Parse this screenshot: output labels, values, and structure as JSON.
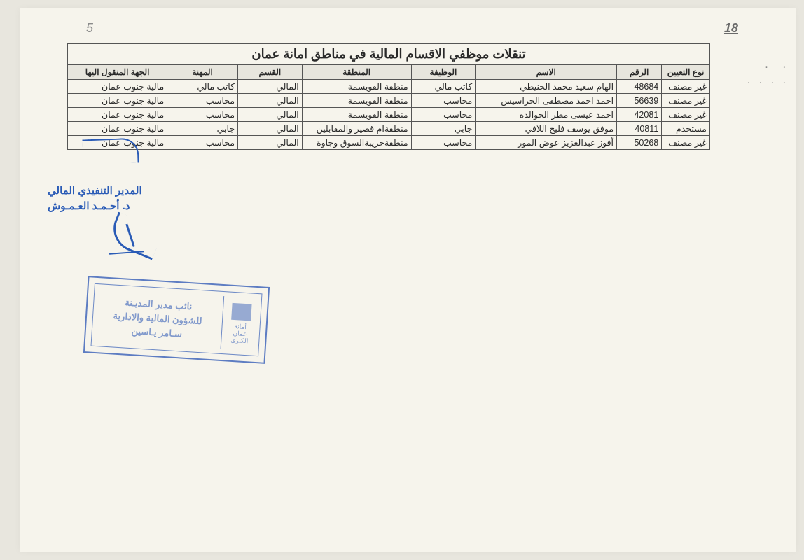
{
  "page_number_right": "18",
  "page_number_left": "5",
  "title": "تنقلات موظفي الاقسام المالية في مناطق امانة عمان",
  "table": {
    "columns": [
      "نوع التعيين",
      "الرقم",
      "الاسم",
      "الوظيفة",
      "المنطقة",
      "القسم",
      "المهنة",
      "الجهة المنقول اليها"
    ],
    "rows": [
      [
        "غير مصنف",
        "48684",
        "الهام سعيد محمد الحنيطي",
        "كاتب مالي",
        "منطقة القويسمة",
        "المالي",
        "كاتب مالي",
        "مالية جنوب عمان"
      ],
      [
        "غير مصنف",
        "56639",
        "احمد احمد مصطفى الحراسيس",
        "محاسب",
        "منطقة القويسمة",
        "المالي",
        "محاسب",
        "مالية جنوب عمان"
      ],
      [
        "غير مصنف",
        "42081",
        "احمد عيسى مطر الخوالده",
        "محاسب",
        "منطقة القويسمة",
        "المالي",
        "محاسب",
        "مالية جنوب عمان"
      ],
      [
        "مستخدم",
        "40811",
        "موفق يوسف فليح اللافي",
        "جابي",
        "منطقةام قصير والمقابلين",
        "المالي",
        "جابي",
        "مالية جنوب عمان"
      ],
      [
        "غير مصنف",
        "50268",
        "أفوز عبدالعزيز عوض المور",
        "محاسب",
        "منطقةخريبةالسوق وجاوة",
        "المالي",
        "محاسب",
        "مالية جنوب عمان"
      ]
    ]
  },
  "exec": {
    "line1": "المدير التنفيذي المالي",
    "line2": "د. أحـمـد العـمـوش"
  },
  "stamp": {
    "logo_text": "أمانة\nعمان\nالكبرى",
    "line1": "نائب مدير المديـنة",
    "line2": "للشؤون المالية والادارية",
    "line3": "سـامر يـاسين"
  }
}
